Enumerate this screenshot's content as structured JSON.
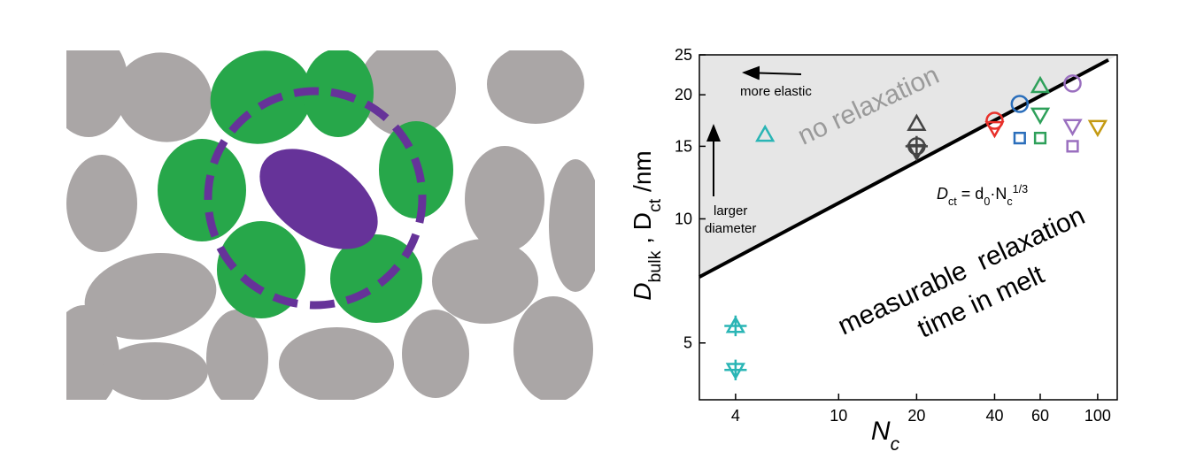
{
  "chart_data": {
    "type": "scatter",
    "log_x": true,
    "log_y": true,
    "xlim": [
      2.9,
      119
    ],
    "ylim": [
      3.64,
      25
    ],
    "xticks": [
      4,
      10,
      20,
      40,
      60,
      100
    ],
    "yticks": [
      5,
      10,
      15,
      20,
      25
    ],
    "x_label": [
      "N",
      "c"
    ],
    "y_label": [
      "D",
      "bulk",
      " , D",
      "ct",
      " /nm"
    ],
    "shade_color": "#e6e6e6",
    "fit_line": {
      "color": "#000000",
      "x": [
        2.9,
        110
      ],
      "values": [
        7.23,
        24.3
      ]
    },
    "formula": [
      "D",
      "ct",
      " = d",
      "0",
      "·N",
      "c",
      "1/3"
    ],
    "annotations": {
      "more_elastic": "more elastic",
      "larger": "larger",
      "diameter": "diameter",
      "no_relaxation": "no relaxation",
      "measurable": "measurable  relaxation",
      "time": "time in melt"
    },
    "series": [
      {
        "color": "#2ab5b5",
        "marker": "triangle-up",
        "x": [
          5.2
        ],
        "values": [
          16
        ]
      },
      {
        "color": "#2ab5b5",
        "marker": "triangle-up-plus",
        "x": [
          4
        ],
        "values": [
          5.5
        ]
      },
      {
        "color": "#2ab5b5",
        "marker": "triangle-down-plus",
        "x": [
          4
        ],
        "values": [
          4.3
        ]
      },
      {
        "color": "#444444",
        "marker": "triangle-up",
        "x": [
          20
        ],
        "values": [
          17.0
        ]
      },
      {
        "color": "#444444",
        "marker": "circle-plus",
        "x": [
          20
        ],
        "values": [
          15.0
        ]
      },
      {
        "color": "#444444",
        "marker": "triangle-down",
        "x": [
          20
        ],
        "values": [
          14.6
        ]
      },
      {
        "color": "#e8302a",
        "marker": "circle",
        "x": [
          40
        ],
        "values": [
          17.3
        ]
      },
      {
        "color": "#e8302a",
        "marker": "triangle-down",
        "x": [
          40
        ],
        "values": [
          16.6
        ]
      },
      {
        "color": "#2a6ebb",
        "marker": "circle",
        "x": [
          50
        ],
        "values": [
          19.0
        ]
      },
      {
        "color": "#2a6ebb",
        "marker": "square",
        "x": [
          50
        ],
        "values": [
          15.7
        ]
      },
      {
        "color": "#2ea05a",
        "marker": "triangle-up",
        "x": [
          60
        ],
        "values": [
          21.0
        ]
      },
      {
        "color": "#2ea05a",
        "marker": "triangle-down",
        "x": [
          60
        ],
        "values": [
          17.9
        ]
      },
      {
        "color": "#2ea05a",
        "marker": "square",
        "x": [
          60
        ],
        "values": [
          15.7
        ]
      },
      {
        "color": "#9a6fbf",
        "marker": "circle",
        "x": [
          80
        ],
        "values": [
          21.3
        ]
      },
      {
        "color": "#9a6fbf",
        "marker": "triangle-down",
        "x": [
          80
        ],
        "values": [
          16.8
        ]
      },
      {
        "color": "#9a6fbf",
        "marker": "square",
        "x": [
          80
        ],
        "values": [
          15.0
        ]
      },
      {
        "color": "#c49a12",
        "marker": "triangle-down",
        "x": [
          100
        ],
        "values": [
          16.7
        ]
      }
    ]
  }
}
